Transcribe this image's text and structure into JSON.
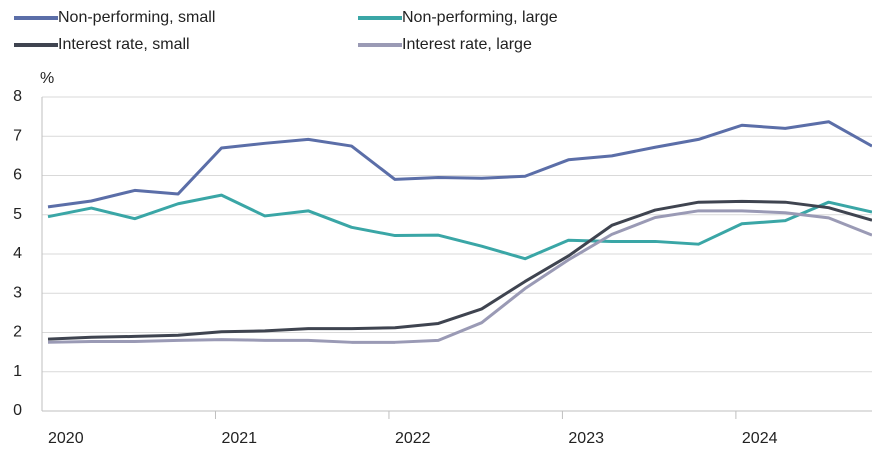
{
  "chart_data": {
    "type": "line",
    "y_label": "%",
    "categories": [
      "2020",
      null,
      null,
      null,
      "2021",
      null,
      null,
      null,
      "2022",
      null,
      null,
      null,
      "2023",
      null,
      null,
      null,
      "2024",
      null,
      null,
      null
    ],
    "series": [
      {
        "name": "Non-performing, small",
        "color": "#5b6ea8",
        "values": [
          5.2,
          5.35,
          5.62,
          5.53,
          6.7,
          6.82,
          6.92,
          6.75,
          5.9,
          5.95,
          5.93,
          5.98,
          6.4,
          6.5,
          6.72,
          6.92,
          7.28,
          7.2,
          7.37,
          6.75
        ]
      },
      {
        "name": "Non-performing, large",
        "color": "#3aa6a6",
        "values": [
          4.95,
          5.17,
          4.9,
          5.28,
          5.5,
          4.97,
          5.1,
          4.68,
          4.47,
          4.48,
          4.2,
          3.88,
          4.35,
          4.32,
          4.32,
          4.25,
          4.77,
          4.85,
          5.32,
          5.07
        ]
      },
      {
        "name": "Interest rate, small",
        "color": "#3f4450",
        "values": [
          1.83,
          1.88,
          1.9,
          1.93,
          2.02,
          2.04,
          2.1,
          2.1,
          2.12,
          2.23,
          2.6,
          3.3,
          3.95,
          4.73,
          5.12,
          5.32,
          5.34,
          5.32,
          5.18,
          4.86
        ]
      },
      {
        "name": "Interest rate, large",
        "color": "#9a9ab5",
        "values": [
          1.75,
          1.77,
          1.77,
          1.8,
          1.82,
          1.8,
          1.8,
          1.75,
          1.75,
          1.8,
          2.25,
          3.12,
          3.85,
          4.5,
          4.93,
          5.1,
          5.1,
          5.05,
          4.92,
          4.48
        ]
      }
    ],
    "ylim": [
      0,
      8
    ],
    "yticks": [
      0,
      1,
      2,
      3,
      4,
      5,
      6,
      7,
      8
    ],
    "grid": true
  }
}
